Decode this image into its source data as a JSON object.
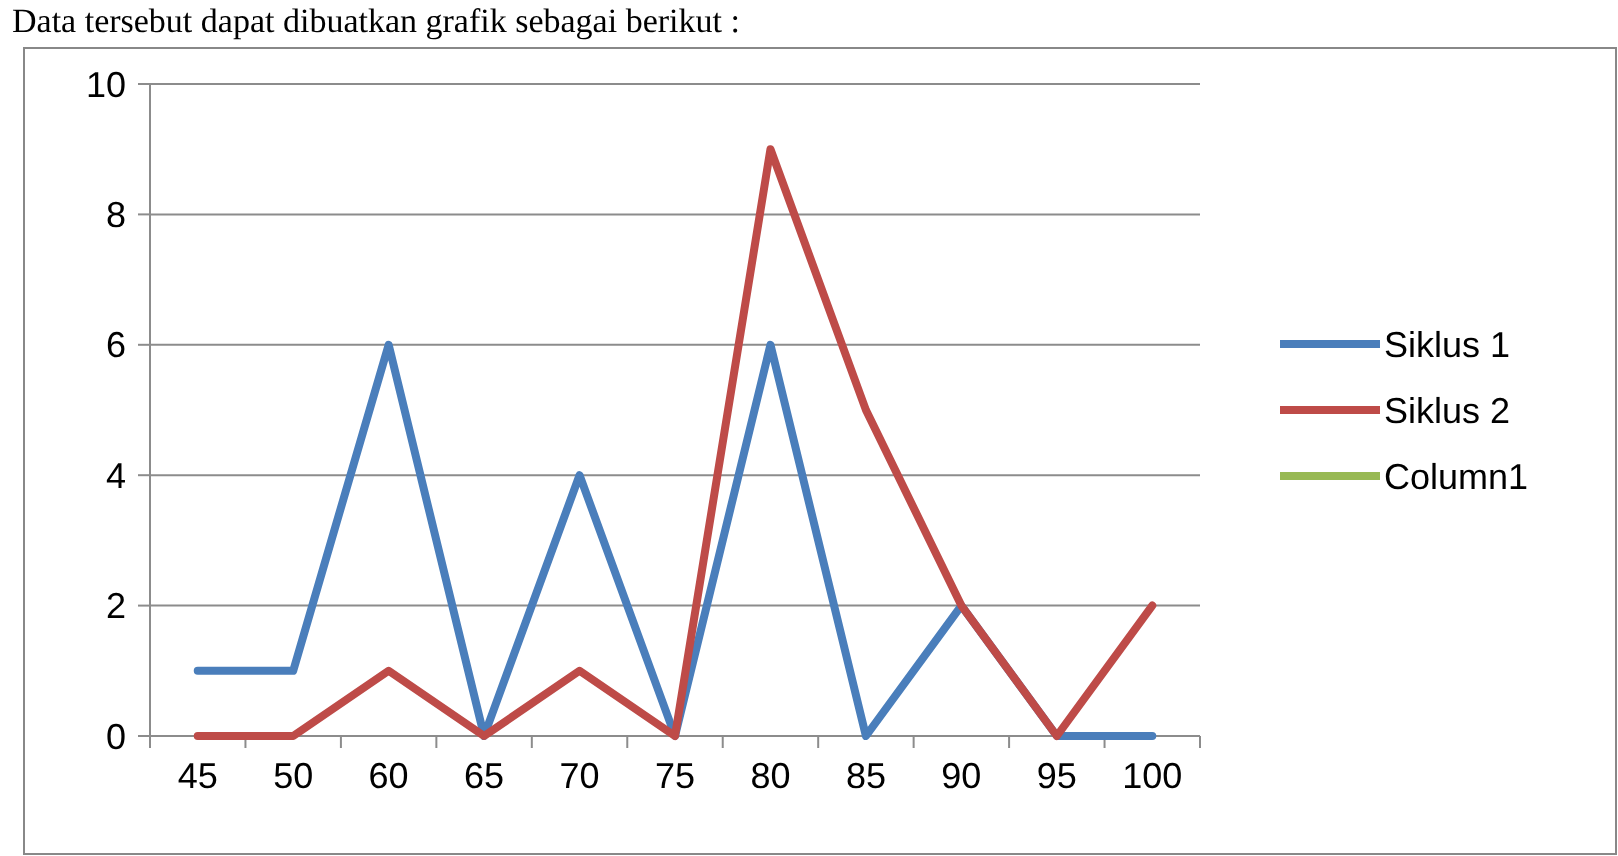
{
  "chart_data": {
    "type": "line",
    "annotations": [
      "Data tersebut dapat dibuatkan grafik sebagai berikut :"
    ],
    "categories": [
      "45",
      "50",
      "60",
      "65",
      "70",
      "75",
      "80",
      "85",
      "90",
      "95",
      "100"
    ],
    "series": [
      {
        "name": "Siklus 1",
        "color": "#4a7ebb",
        "values": [
          1,
          1,
          6,
          0,
          4,
          0,
          6,
          0,
          2,
          0,
          0
        ]
      },
      {
        "name": "Siklus 2",
        "color": "#be4b48",
        "values": [
          0,
          0,
          1,
          0,
          1,
          0,
          9,
          5,
          2,
          0,
          2
        ]
      },
      {
        "name": "Column1",
        "color": "#98b954",
        "values": [
          null,
          null,
          null,
          null,
          null,
          null,
          null,
          null,
          null,
          null,
          null
        ]
      }
    ],
    "ylim": [
      0,
      10
    ],
    "yticks": [
      0,
      2,
      4,
      6,
      8,
      10
    ],
    "grid": "y",
    "legend": "right",
    "marker": "none",
    "line_style": "solid"
  }
}
